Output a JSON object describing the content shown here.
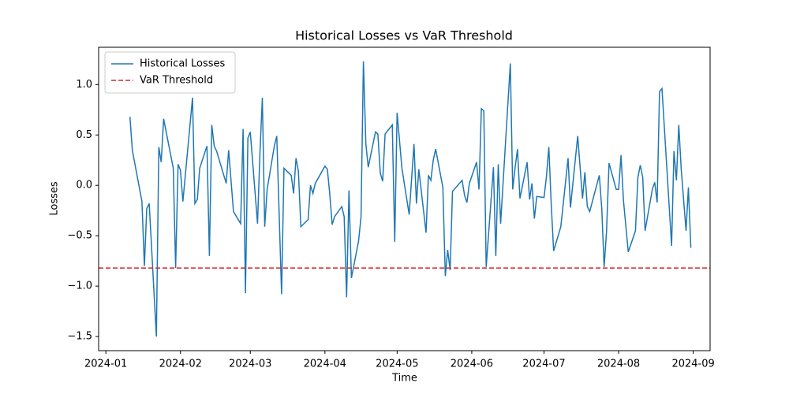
{
  "chart_data": {
    "type": "line",
    "title": "Historical Losses vs VaR Threshold",
    "x_label": "Time",
    "y_label": "Losses",
    "x": [
      "2024-01-11",
      "2024-01-12",
      "2024-01-16",
      "2024-01-17",
      "2024-01-18",
      "2024-01-19",
      "2024-01-22",
      "2024-01-23",
      "2024-01-24",
      "2024-01-25",
      "2024-01-29",
      "2024-01-30",
      "2024-01-31",
      "2024-02-01",
      "2024-02-02",
      "2024-02-06",
      "2024-02-07",
      "2024-02-08",
      "2024-02-09",
      "2024-02-12",
      "2024-02-13",
      "2024-02-14",
      "2024-02-15",
      "2024-02-16",
      "2024-02-20",
      "2024-02-21",
      "2024-02-23",
      "2024-02-26",
      "2024-02-27",
      "2024-02-28",
      "2024-02-29",
      "2024-03-01",
      "2024-03-04",
      "2024-03-05",
      "2024-03-06",
      "2024-03-07",
      "2024-03-08",
      "2024-03-11",
      "2024-03-12",
      "2024-03-14",
      "2024-03-15",
      "2024-03-18",
      "2024-03-19",
      "2024-03-20",
      "2024-03-21",
      "2024-03-22",
      "2024-03-25",
      "2024-03-26",
      "2024-03-27",
      "2024-03-28",
      "2024-04-01",
      "2024-04-02",
      "2024-04-03",
      "2024-04-04",
      "2024-04-05",
      "2024-04-08",
      "2024-04-09",
      "2024-04-10",
      "2024-04-11",
      "2024-04-12",
      "2024-04-15",
      "2024-04-16",
      "2024-04-17",
      "2024-04-18",
      "2024-04-19",
      "2024-04-22",
      "2024-04-23",
      "2024-04-24",
      "2024-04-25",
      "2024-04-26",
      "2024-04-29",
      "2024-04-30",
      "2024-05-01",
      "2024-05-03",
      "2024-05-06",
      "2024-05-08",
      "2024-05-09",
      "2024-05-10",
      "2024-05-13",
      "2024-05-14",
      "2024-05-15",
      "2024-05-16",
      "2024-05-17",
      "2024-05-20",
      "2024-05-21",
      "2024-05-22",
      "2024-05-23",
      "2024-05-24",
      "2024-05-28",
      "2024-05-29",
      "2024-05-30",
      "2024-05-31",
      "2024-06-03",
      "2024-06-04",
      "2024-06-05",
      "2024-06-06",
      "2024-06-07",
      "2024-06-10",
      "2024-06-11",
      "2024-06-12",
      "2024-06-13",
      "2024-06-17",
      "2024-06-18",
      "2024-06-19",
      "2024-06-20",
      "2024-06-21",
      "2024-06-24",
      "2024-06-25",
      "2024-06-26",
      "2024-06-27",
      "2024-06-28",
      "2024-07-01",
      "2024-07-02",
      "2024-07-03",
      "2024-07-04",
      "2024-07-05",
      "2024-07-08",
      "2024-07-11",
      "2024-07-12",
      "2024-07-15",
      "2024-07-17",
      "2024-07-18",
      "2024-07-19",
      "2024-07-20",
      "2024-07-24",
      "2024-07-25",
      "2024-07-26",
      "2024-07-27",
      "2024-07-28",
      "2024-07-31",
      "2024-08-01",
      "2024-08-02",
      "2024-08-03",
      "2024-08-05",
      "2024-08-08",
      "2024-08-09",
      "2024-08-10",
      "2024-08-11",
      "2024-08-12",
      "2024-08-15",
      "2024-08-16",
      "2024-08-17",
      "2024-08-18",
      "2024-08-19",
      "2024-08-23",
      "2024-08-24",
      "2024-08-25",
      "2024-08-26",
      "2024-08-27",
      "2024-08-29",
      "2024-08-30",
      "2024-08-31"
    ],
    "series": [
      {
        "name": "Historical Losses",
        "color": "#1f77b4",
        "values": [
          0.68,
          0.35,
          -0.16,
          -0.8,
          -0.23,
          -0.18,
          -1.5,
          0.38,
          0.23,
          0.66,
          0.17,
          -0.82,
          0.21,
          0.15,
          -0.16,
          0.87,
          -0.18,
          -0.14,
          0.17,
          0.39,
          -0.7,
          0.6,
          0.39,
          0.34,
          0.02,
          0.35,
          -0.26,
          -0.38,
          0.56,
          -1.07,
          0.47,
          0.53,
          -0.38,
          0.31,
          0.87,
          -0.41,
          -0.04,
          0.39,
          0.49,
          -1.08,
          0.17,
          0.1,
          -0.08,
          0.27,
          0.14,
          -0.41,
          -0.34,
          0.0,
          -0.08,
          0.02,
          0.19,
          0.16,
          -0.08,
          -0.39,
          -0.31,
          -0.21,
          -0.31,
          -1.11,
          -0.05,
          -0.92,
          -0.55,
          -0.31,
          1.23,
          0.41,
          0.18,
          0.53,
          0.51,
          0.12,
          0.04,
          0.51,
          0.6,
          -0.56,
          0.72,
          0.17,
          -0.29,
          0.41,
          -0.18,
          0.16,
          -0.47,
          0.1,
          0.05,
          0.25,
          0.36,
          -0.02,
          -0.9,
          -0.64,
          -0.84,
          -0.06,
          0.05,
          -0.1,
          -0.17,
          0.02,
          0.23,
          -0.04,
          0.76,
          0.74,
          -0.81,
          0.18,
          -0.7,
          0.21,
          -0.38,
          1.21,
          -0.04,
          0.18,
          0.36,
          -0.13,
          0.23,
          -0.14,
          0.02,
          -0.33,
          -0.11,
          -0.12,
          0.08,
          0.38,
          -0.18,
          -0.65,
          -0.41,
          0.27,
          -0.22,
          0.49,
          -0.13,
          0.13,
          -0.21,
          -0.26,
          0.1,
          -0.23,
          -0.81,
          -0.45,
          0.22,
          -0.04,
          -0.04,
          0.3,
          -0.15,
          -0.66,
          -0.45,
          0.08,
          0.2,
          0.08,
          -0.45,
          -0.04,
          0.03,
          -0.17,
          0.93,
          0.96,
          -0.6,
          0.34,
          0.05,
          0.6,
          0.16,
          -0.45,
          -0.02,
          -0.62
        ]
      }
    ],
    "hlines": [
      {
        "name": "VaR Threshold",
        "color": "#d62728",
        "value": -0.82,
        "style": "dashed"
      }
    ],
    "xlim": [
      "2023-12-29",
      "2024-09-08"
    ],
    "xticks": [
      {
        "value": "2024-01-01",
        "label": "2024-01"
      },
      {
        "value": "2024-02-01",
        "label": "2024-02"
      },
      {
        "value": "2024-03-01",
        "label": "2024-03"
      },
      {
        "value": "2024-04-01",
        "label": "2024-04"
      },
      {
        "value": "2024-05-01",
        "label": "2024-05"
      },
      {
        "value": "2024-06-01",
        "label": "2024-06"
      },
      {
        "value": "2024-07-01",
        "label": "2024-07"
      },
      {
        "value": "2024-08-01",
        "label": "2024-08"
      },
      {
        "value": "2024-09-01",
        "label": "2024-09"
      }
    ],
    "ylim": [
      -1.64,
      1.37
    ],
    "yticks": [
      {
        "value": -1.5,
        "label": "−1.5"
      },
      {
        "value": -1,
        "label": "−1.0"
      },
      {
        "value": -0.5,
        "label": "−0.5"
      },
      {
        "value": 0,
        "label": "0.0"
      },
      {
        "value": 0.5,
        "label": "0.5"
      },
      {
        "value": 1,
        "label": "1.0"
      }
    ],
    "legend": "upper left",
    "grid": false
  }
}
